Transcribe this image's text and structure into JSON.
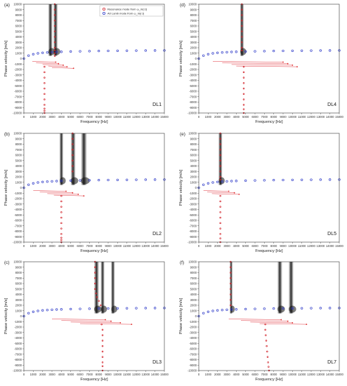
{
  "chart_data": [
    {
      "type": "scatter",
      "panel_label": "(a)",
      "case_label": "DL1",
      "xlabel": "Frequency [Hz]",
      "ylabel": "Phase velocity [m/s]",
      "xlim": [
        0,
        15000
      ],
      "ylim": [
        -10000,
        10000
      ],
      "xticks": [
        0,
        1000,
        2000,
        3000,
        4000,
        5000,
        6000,
        7000,
        8000,
        9000,
        10000,
        11000,
        12000,
        13000,
        14000,
        15000
      ],
      "yticks": [
        10000,
        9000,
        8000,
        7000,
        6000,
        5000,
        4000,
        3000,
        2000,
        1000,
        0,
        -1000,
        -2000,
        -3000,
        -4000,
        -5000,
        -6000,
        -7000,
        -8000,
        -9000,
        -10000
      ],
      "legend": {
        "placement": "top-right",
        "entries": [
          "Resonance mode from ω_m(r,t)",
          "A0 Lamb mode from ω_m(r,t)"
        ]
      },
      "grid": false,
      "dark_bands_hz": [
        [
          2600,
          3050
        ],
        [
          3150,
          3600
        ]
      ],
      "series": [
        {
          "name": "A0 Lamb mode from ω_m(r,t)",
          "style": "blue-dots",
          "x": [
            0,
            500,
            1000,
            1500,
            2000,
            2500,
            3000,
            3500,
            4000,
            5000,
            6000,
            7000,
            8000,
            9000,
            10000,
            11000,
            12000,
            13000,
            14000,
            15000
          ],
          "y": [
            0,
            550,
            800,
            960,
            1060,
            1130,
            1180,
            1220,
            1250,
            1300,
            1340,
            1370,
            1400,
            1420,
            1440,
            1455,
            1470,
            1480,
            1490,
            1500
          ]
        },
        {
          "name": "Resonance mode from ω_m(r,t)",
          "style": "red-dots",
          "x": [
            3300,
            3300,
            3300,
            3300,
            3300,
            3300,
            3300,
            3300,
            3300,
            3300,
            3300,
            3300,
            2200,
            2200,
            2200,
            2200,
            2200,
            2200,
            2200,
            2200,
            2200,
            2200,
            2200
          ],
          "y": [
            10000,
            9000,
            8000,
            7000,
            6000,
            5000,
            4000,
            3000,
            2000,
            1500,
            1000,
            500,
            -1500,
            -2500,
            -3500,
            -4500,
            -5500,
            -6500,
            -7500,
            -8500,
            -9200,
            -9600,
            -10000
          ]
        }
      ],
      "branch_lines": [
        [
          900,
          3400
        ],
        [
          1300,
          3700
        ],
        [
          2000,
          4200
        ],
        [
          2600,
          4600
        ],
        [
          3000,
          5300
        ]
      ]
    },
    {
      "type": "scatter",
      "panel_label": "(b)",
      "case_label": "DL2",
      "xlabel": "Frequency [Hz]",
      "ylabel": "Phase velocity [m/s]",
      "xlim": [
        0,
        15000
      ],
      "ylim": [
        -10000,
        10000
      ],
      "xticks": [
        0,
        1000,
        2000,
        3000,
        4000,
        5000,
        6000,
        7000,
        8000,
        9000,
        10000,
        11000,
        12000,
        13000,
        14000,
        15000
      ],
      "yticks": [
        10000,
        9000,
        8000,
        7000,
        6000,
        5000,
        4000,
        3000,
        2000,
        1000,
        0,
        -1000,
        -2000,
        -3000,
        -4000,
        -5000,
        -6000,
        -7000,
        -8000,
        -9000,
        -10000
      ],
      "grid": false,
      "dark_bands_hz": [
        [
          3800,
          4200
        ],
        [
          5000,
          5500
        ],
        [
          6100,
          6700
        ]
      ],
      "series": [
        {
          "style": "blue-dots",
          "x": [
            0,
            500,
            1000,
            1500,
            2000,
            2500,
            3000,
            3500,
            4000,
            5000,
            6000,
            7000,
            8000,
            9000,
            10000,
            11000,
            12000,
            13000,
            14000,
            15000
          ],
          "y": [
            0,
            550,
            800,
            960,
            1060,
            1130,
            1180,
            1220,
            1250,
            1300,
            1340,
            1370,
            1400,
            1420,
            1440,
            1455,
            1470,
            1480,
            1490,
            1500
          ]
        },
        {
          "style": "red-dots",
          "x": [
            5200,
            5200,
            5200,
            5200,
            5200,
            5200,
            5200,
            5200,
            4000,
            4000,
            4000,
            4000,
            4000,
            4000,
            4000,
            4000,
            4000,
            4000,
            4000
          ],
          "y": [
            10000,
            9000,
            8000,
            7000,
            6000,
            5000,
            4000,
            3000,
            -1500,
            -2500,
            -3500,
            -4500,
            -5500,
            -6500,
            -7500,
            -8500,
            -9200,
            -9600,
            -10000
          ]
        }
      ],
      "branch_lines": [
        [
          1000,
          4500
        ],
        [
          1700,
          5200
        ],
        [
          2500,
          5800
        ],
        [
          3200,
          6400
        ]
      ]
    },
    {
      "type": "scatter",
      "panel_label": "(c)",
      "case_label": "DL3",
      "xlabel": "Frequency [Hz]",
      "ylabel": "Phase velocity [m/s]",
      "xlim": [
        0,
        15000
      ],
      "ylim": [
        -10000,
        10000
      ],
      "xticks": [
        0,
        1000,
        2000,
        3000,
        4000,
        5000,
        6000,
        7000,
        8000,
        9000,
        10000,
        11000,
        12000,
        13000,
        14000,
        15000
      ],
      "yticks": [
        10000,
        9000,
        8000,
        7000,
        6000,
        5000,
        4000,
        3000,
        2000,
        1000,
        0,
        -1000,
        -2000,
        -3000,
        -4000,
        -5000,
        -6000,
        -7000,
        -8000,
        -9000,
        -10000
      ],
      "grid": false,
      "dark_bands_hz": [
        [
          7500,
          8000
        ],
        [
          8200,
          8600
        ],
        [
          9300,
          9700
        ]
      ],
      "series": [
        {
          "style": "blue-dots",
          "x": [
            0,
            500,
            1000,
            1500,
            2000,
            2500,
            3000,
            3500,
            4000,
            5000,
            6000,
            7000,
            8000,
            9000,
            10000,
            11000,
            12000,
            13000,
            14000,
            15000
          ],
          "y": [
            0,
            550,
            800,
            960,
            1060,
            1130,
            1180,
            1220,
            1250,
            1300,
            1340,
            1370,
            1400,
            1420,
            1440,
            1455,
            1470,
            1480,
            1490,
            1500
          ]
        },
        {
          "style": "red-dots",
          "x": [
            7600,
            7600,
            7600,
            7600,
            7600,
            7600,
            7700,
            7800,
            8000,
            8200,
            8300,
            8400,
            8400,
            8400,
            8400,
            8400,
            8400,
            8400,
            8400,
            8400
          ],
          "y": [
            10000,
            9000,
            8000,
            7000,
            6000,
            5000,
            4200,
            3500,
            2800,
            2000,
            -1500,
            -2500,
            -3500,
            -4500,
            -5500,
            -6500,
            -7500,
            -8500,
            -9200,
            -10000
          ]
        }
      ],
      "branch_lines": [
        [
          3000,
          8700
        ],
        [
          4000,
          9300
        ],
        [
          5000,
          10300
        ],
        [
          6000,
          11500
        ]
      ]
    },
    {
      "type": "scatter",
      "panel_label": "(d)",
      "case_label": "DL4",
      "xlabel": "Frequency [Hz]",
      "ylabel": "Phase velocity [m/s]",
      "xlim": [
        0,
        15000
      ],
      "ylim": [
        -10000,
        10000
      ],
      "xticks": [
        0,
        1000,
        2000,
        3000,
        4000,
        5000,
        6000,
        7000,
        8000,
        9000,
        10000,
        11000,
        12000,
        13000,
        14000,
        15000
      ],
      "yticks": [
        10000,
        9000,
        8000,
        7000,
        6000,
        5000,
        4000,
        3000,
        2000,
        1000,
        0,
        -1000,
        -2000,
        -3000,
        -4000,
        -5000,
        -6000,
        -7000,
        -8000,
        -9000,
        -10000
      ],
      "grid": false,
      "dark_bands_hz": [
        [
          4400,
          4800
        ]
      ],
      "series": [
        {
          "style": "blue-dots",
          "x": [
            0,
            500,
            1000,
            1500,
            2000,
            2500,
            3000,
            3500,
            4000,
            5000,
            6000,
            7000,
            8000,
            9000,
            10000,
            11000,
            12000,
            13000,
            14000,
            15000
          ],
          "y": [
            0,
            550,
            800,
            960,
            1060,
            1130,
            1180,
            1220,
            1250,
            1300,
            1340,
            1370,
            1400,
            1420,
            1440,
            1455,
            1470,
            1480,
            1490,
            1500
          ]
        },
        {
          "style": "red-dots",
          "x": [
            4600,
            4600,
            4600,
            4600,
            4600,
            4600,
            4600,
            4600,
            4600,
            4600,
            4800,
            4800,
            4800,
            4800,
            4800,
            4800,
            4800,
            4800,
            4800,
            4800
          ],
          "y": [
            10000,
            9000,
            8000,
            7000,
            6000,
            5000,
            4000,
            3000,
            2000,
            1500,
            -1500,
            -2500,
            -3500,
            -4500,
            -5500,
            -6500,
            -7500,
            -8500,
            -9300,
            -10000
          ]
        }
      ],
      "branch_lines": [
        [
          1500,
          9000
        ],
        [
          2500,
          9500
        ],
        [
          3500,
          10000
        ],
        [
          4000,
          10500
        ]
      ]
    },
    {
      "type": "scatter",
      "panel_label": "(e)",
      "case_label": "DL5",
      "xlabel": "Frequency [Hz]",
      "ylabel": "Phase velocity [m/s]",
      "xlim": [
        0,
        15000
      ],
      "ylim": [
        -10000,
        10000
      ],
      "xticks": [
        0,
        1000,
        2000,
        3000,
        4000,
        5000,
        6000,
        7000,
        8000,
        9000,
        10000,
        11000,
        12000,
        13000,
        14000,
        15000
      ],
      "yticks": [
        10000,
        9000,
        8000,
        7000,
        6000,
        5000,
        4000,
        3000,
        2000,
        1000,
        0,
        -1000,
        -2000,
        -3000,
        -4000,
        -5000,
        -6000,
        -7000,
        -8000,
        -9000,
        -10000
      ],
      "grid": false,
      "dark_bands_hz": [
        [
          2100,
          2500
        ]
      ],
      "series": [
        {
          "style": "blue-dots",
          "x": [
            0,
            500,
            1000,
            1500,
            2000,
            2500,
            3000,
            3500,
            4000,
            5000,
            6000,
            7000,
            8000,
            9000,
            10000,
            11000,
            12000,
            13000,
            14000,
            15000
          ],
          "y": [
            0,
            550,
            800,
            960,
            1060,
            1130,
            1180,
            1220,
            1250,
            1300,
            1340,
            1370,
            1400,
            1420,
            1440,
            1455,
            1470,
            1480,
            1490,
            1500
          ]
        },
        {
          "style": "red-dots",
          "x": [
            2300,
            2300,
            2300,
            2300,
            2300,
            2300,
            2300,
            2300,
            2300,
            2300,
            2300,
            2300,
            2300,
            2300,
            2300,
            2300,
            2300,
            2300,
            2300,
            2300
          ],
          "y": [
            10000,
            9000,
            8000,
            7000,
            6000,
            5000,
            4000,
            3000,
            2000,
            1500,
            -1500,
            -2500,
            -3500,
            -4500,
            -5500,
            -6500,
            -7500,
            -8500,
            -9300,
            -10000
          ]
        }
      ],
      "branch_lines": [
        [
          500,
          3200
        ],
        [
          900,
          3800
        ],
        [
          1400,
          4300
        ]
      ]
    },
    {
      "type": "scatter",
      "panel_label": "(f)",
      "case_label": "DL7",
      "xlabel": "Frequency [Hz]",
      "ylabel": "Phase velocity [m/s]",
      "xlim": [
        0,
        15000
      ],
      "ylim": [
        -10000,
        10000
      ],
      "xticks": [
        0,
        1000,
        2000,
        3000,
        4000,
        5000,
        6000,
        7000,
        8000,
        9000,
        10000,
        11000,
        12000,
        13000,
        14000,
        15000
      ],
      "yticks": [
        10000,
        9000,
        8000,
        7000,
        6000,
        5000,
        4000,
        3000,
        2000,
        1000,
        0,
        -1000,
        -2000,
        -3000,
        -4000,
        -5000,
        -6000,
        -7000,
        -8000,
        -9000,
        -10000
      ],
      "grid": false,
      "dark_bands_hz": [
        [
          3300,
          3600
        ],
        [
          8400,
          8900
        ],
        [
          9600,
          10100
        ]
      ],
      "series": [
        {
          "style": "blue-dots",
          "x": [
            0,
            500,
            1000,
            1500,
            2000,
            2500,
            3000,
            3500,
            4000,
            5000,
            6000,
            7000,
            8000,
            9000,
            10000,
            11000,
            12000,
            13000,
            14000,
            15000
          ],
          "y": [
            0,
            550,
            800,
            960,
            1060,
            1130,
            1180,
            1220,
            1250,
            1300,
            1340,
            1370,
            1400,
            1420,
            1440,
            1455,
            1470,
            1480,
            1490,
            1500
          ]
        },
        {
          "style": "red-dots",
          "x": [
            3400,
            3400,
            3400,
            3400,
            3400,
            3400,
            3400,
            3400,
            3400,
            7100,
            7100,
            7150,
            7200,
            7250,
            7300,
            7350,
            7400,
            7450,
            7500
          ],
          "y": [
            10000,
            9000,
            8000,
            7000,
            6000,
            5000,
            4000,
            3000,
            2000,
            -1500,
            -2500,
            -3500,
            -4500,
            -5500,
            -6500,
            -7500,
            -8500,
            -9300,
            -10000
          ]
        }
      ],
      "branch_lines": [
        [
          3200,
          8800
        ],
        [
          4500,
          9500
        ],
        [
          5500,
          10000
        ],
        [
          6500,
          11500
        ]
      ]
    }
  ]
}
